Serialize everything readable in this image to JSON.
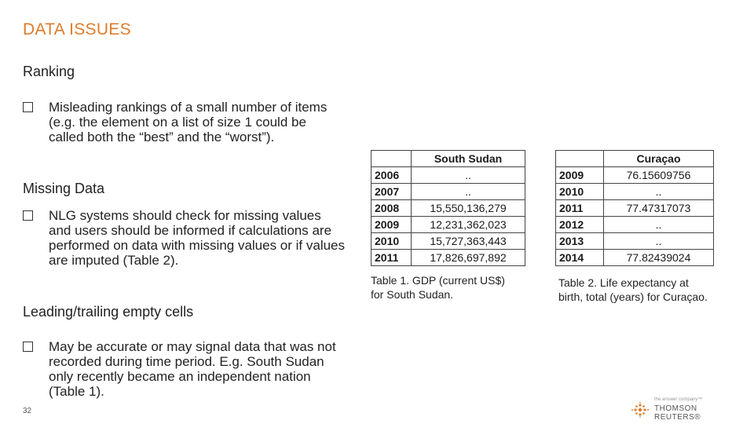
{
  "slide": {
    "title": "DATA ISSUES",
    "page_number": "32"
  },
  "sections": [
    {
      "heading": "Ranking",
      "bullet": "Misleading rankings of a small number of items (e.g. the element on a list of size 1 could be called both the “best” and the “worst”)."
    },
    {
      "heading": "Missing Data",
      "bullet": "NLG systems should check for missing values and users should be informed if calculations are performed on data with missing values or if values are imputed (Table 2)."
    },
    {
      "heading": "Leading/trailing empty cells",
      "bullet": "May be accurate or may signal data that was not recorded during time period. E.g. South Sudan only recently became an independent nation (Table 1)."
    }
  ],
  "table1": {
    "header": "South Sudan",
    "rows": [
      {
        "year": "2006",
        "value": ".."
      },
      {
        "year": "2007",
        "value": ".."
      },
      {
        "year": "2008",
        "value": "15,550,136,279"
      },
      {
        "year": "2009",
        "value": "12,231,362,023"
      },
      {
        "year": "2010",
        "value": "15,727,363,443"
      },
      {
        "year": "2011",
        "value": "17,826,697,892"
      }
    ],
    "caption_line1": "Table 1. GDP (current US$)",
    "caption_line2": "for South Sudan."
  },
  "table2": {
    "header": "Curaçao",
    "rows": [
      {
        "year": "2009",
        "value": "76.15609756"
      },
      {
        "year": "2010",
        "value": ".."
      },
      {
        "year": "2011",
        "value": "77.47317073"
      },
      {
        "year": "2012",
        "value": ".."
      },
      {
        "year": "2013",
        "value": ".."
      },
      {
        "year": "2014",
        "value": "77.82439024"
      }
    ],
    "caption_line1": "Table 2. Life expectancy at",
    "caption_line2": "birth, total (years) for Curaçao."
  },
  "logo": {
    "tagline": "the answer company™",
    "name": "THOMSON REUTERS®",
    "icon": "thomson-reuters-dot-logo-icon"
  },
  "colors": {
    "accent": "#e07b2a"
  }
}
